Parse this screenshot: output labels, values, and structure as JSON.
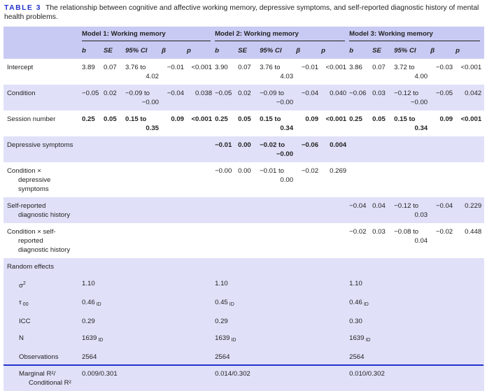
{
  "caption": {
    "label": "TABLE 3",
    "text": "The relationship between cognitive and affective working memory, depressive symptoms, and self-reported diagnostic history of mental health problems."
  },
  "models": [
    "Model 1: Working memory",
    "Model 2: Working memory",
    "Model 3: Working memory"
  ],
  "subheaders": [
    "b",
    "SE",
    "95% CI",
    "β",
    "p"
  ],
  "rows": [
    {
      "label": [
        "Intercept"
      ],
      "shade": false,
      "models": [
        {
          "b": "3.89",
          "se": "0.07",
          "ci": [
            "3.76 to",
            "4.02"
          ],
          "beta": "−0.01",
          "p": "<0.001",
          "bold": false
        },
        {
          "b": "3.90",
          "se": "0.07",
          "ci": [
            "3.76 to",
            "4.03"
          ],
          "beta": "−0.01",
          "p": "<0.001",
          "bold": false
        },
        {
          "b": "3.86",
          "se": "0.07",
          "ci": [
            "3.72 to",
            "4.00"
          ],
          "beta": "−0.03",
          "p": "<0.001",
          "bold": false
        }
      ]
    },
    {
      "label": [
        "Condition"
      ],
      "shade": true,
      "models": [
        {
          "b": "−0.05",
          "se": "0.02",
          "ci": [
            "−0.09 to",
            "−0.00"
          ],
          "beta": "−0.04",
          "p": "0.038",
          "bold": false
        },
        {
          "b": "−0.05",
          "se": "0.02",
          "ci": [
            "−0.09 to",
            "−0.00"
          ],
          "beta": "−0.04",
          "p": "0.040",
          "bold": false
        },
        {
          "b": "−0.06",
          "se": "0.03",
          "ci": [
            "−0.12 to",
            "−0.00"
          ],
          "beta": "−0.05",
          "p": "0.042",
          "bold": false
        }
      ]
    },
    {
      "label": [
        "Session number"
      ],
      "shade": false,
      "models": [
        {
          "b": "0.25",
          "se": "0.05",
          "ci": [
            "0.15 to",
            "0.35"
          ],
          "beta": "0.09",
          "p": "<0.001",
          "bold": true
        },
        {
          "b": "0.25",
          "se": "0.05",
          "ci": [
            "0.15 to",
            "0.34"
          ],
          "beta": "0.09",
          "p": "<0.001",
          "bold": true
        },
        {
          "b": "0.25",
          "se": "0.05",
          "ci": [
            "0.15 to",
            "0.34"
          ],
          "beta": "0.09",
          "p": "<0.001",
          "bold": true
        }
      ]
    },
    {
      "label": [
        "Depressive symptoms"
      ],
      "shade": true,
      "models": [
        null,
        {
          "b": "−0.01",
          "se": "0.00",
          "ci": [
            "−0.02 to",
            "−0.00"
          ],
          "beta": "−0.06",
          "p": "0.004",
          "bold": true
        },
        null
      ]
    },
    {
      "label": [
        "Condition ×",
        "depressive",
        "symptoms"
      ],
      "shade": false,
      "models": [
        null,
        {
          "b": "−0.00",
          "se": "0.00",
          "ci": [
            "−0.01 to",
            "0.00"
          ],
          "beta": "−0.02",
          "p": "0.269",
          "bold": false
        },
        null
      ]
    },
    {
      "label": [
        "Self-reported",
        "diagnostic history"
      ],
      "shade": true,
      "models": [
        null,
        null,
        {
          "b": "−0.04",
          "se": "0.04",
          "ci": [
            "−0.12 to",
            "0.03"
          ],
          "beta": "−0.04",
          "p": "0.229",
          "bold": false
        }
      ]
    },
    {
      "label": [
        "Condition × self-",
        "reported",
        "diagnostic history"
      ],
      "shade": false,
      "models": [
        null,
        null,
        {
          "b": "−0.02",
          "se": "0.03",
          "ci": [
            "−0.08 to",
            "0.04"
          ],
          "beta": "−0.02",
          "p": "0.448",
          "bold": false
        }
      ]
    }
  ],
  "random_effects": {
    "title": "Random effects",
    "rows": [
      {
        "label": "σ",
        "sup": "2",
        "values": [
          {
            "v": "1.10"
          },
          {
            "v": "1.10"
          },
          {
            "v": "1.10"
          }
        ]
      },
      {
        "label": "τ",
        "sub": "00",
        "values": [
          {
            "v": "0.46",
            "sub": "ID"
          },
          {
            "v": "0.45",
            "sub": "ID"
          },
          {
            "v": "0.46",
            "sub": "ID"
          }
        ]
      },
      {
        "label": "ICC",
        "values": [
          {
            "v": "0.29"
          },
          {
            "v": "0.29"
          },
          {
            "v": "0.30"
          }
        ]
      },
      {
        "label": "N",
        "values": [
          {
            "v": "1639",
            "sub": "ID"
          },
          {
            "v": "1639",
            "sub": "ID"
          },
          {
            "v": "1639",
            "sub": "ID"
          }
        ]
      },
      {
        "label": "Observations",
        "values": [
          {
            "v": "2564"
          },
          {
            "v": "2564"
          },
          {
            "v": "2564"
          }
        ]
      },
      {
        "label": "Marginal R²/",
        "label2": "Conditional R²",
        "values": [
          {
            "v": "0.009/0.301"
          },
          {
            "v": "0.014/0.302"
          },
          {
            "v": "0.010/0.302"
          }
        ]
      }
    ]
  },
  "colors": {
    "header_bg": "#c9caf3",
    "shade_bg": "#e0e1f8",
    "accent": "#2233cc"
  }
}
